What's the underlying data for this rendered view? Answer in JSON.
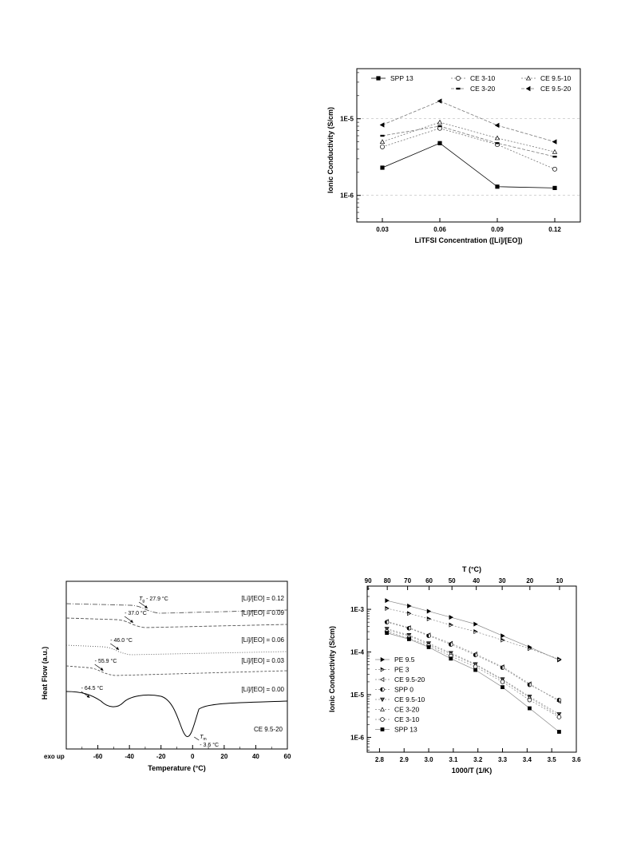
{
  "chart_data": [
    {
      "type": "line",
      "xlabel": "LiTFSI Concentration ([Li]/[EO])",
      "ylabel": "Ionic Conductivity (S/cm)",
      "ylog": true,
      "categories": [
        "0.03",
        "0.06",
        "0.09",
        "0.12"
      ],
      "yticks": [
        {
          "v": 1e-06,
          "label": "1E-6"
        },
        {
          "v": 1e-05,
          "label": "1E-5"
        }
      ],
      "ylim": [
        4.5e-07,
        4.5e-05
      ],
      "legend": "top",
      "series": [
        {
          "name": "SPP 13",
          "marker": "square-filled",
          "dash": "",
          "values": [
            2.3e-06,
            4.8e-06,
            1.3e-06,
            1.25e-06
          ]
        },
        {
          "name": "CE 3-10",
          "marker": "circle-open",
          "dash": "2,2",
          "values": [
            4.3e-06,
            7.5e-06,
            4.6e-06,
            2.2e-06
          ]
        },
        {
          "name": "CE 9.5-10",
          "marker": "triangle-open",
          "dash": "2,2",
          "values": [
            5e-06,
            9e-06,
            5.6e-06,
            3.7e-06
          ]
        },
        {
          "name": "CE 3-20",
          "marker": "bar",
          "dash": "4,2",
          "values": [
            6e-06,
            8e-06,
            4.8e-06,
            3.2e-06
          ]
        },
        {
          "name": "CE 9.5-20",
          "marker": "triangle-left",
          "dash": "4,2",
          "values": [
            8.3e-06,
            1.7e-05,
            8.2e-06,
            5e-06
          ]
        }
      ]
    },
    {
      "type": "line",
      "xlabel": "Temperature (°C)",
      "ylabel": "Heat Flow (a.u.)",
      "xlim": [
        -80,
        60
      ],
      "xticks": [
        -60,
        -40,
        -20,
        0,
        20,
        40,
        60
      ],
      "corner_left": "exo up",
      "sample_label": "CE 9.5-20",
      "curves": [
        {
          "label": "[Li]/[EO] = 0.12",
          "dash": "6,2,1,2",
          "tg": "- 27.9 °C",
          "tg_prefix": "T",
          "tg_sub": "g"
        },
        {
          "label": "[Li]/[EO] = 0.09",
          "dash": "4,2",
          "tg": "- 37.0 °C"
        },
        {
          "label": "[Li]/[EO] = 0.06",
          "dash": "1,2",
          "tg": "- 46.0 °C"
        },
        {
          "label": "[Li]/[EO] = 0.03",
          "dash": "3,2",
          "tg": "- 55.9 °C"
        },
        {
          "label": "[Li]/[EO] = 0.00",
          "dash": "",
          "tg": "- 64.5 °C",
          "tm": "- 3.6 °C",
          "tm_prefix": "T",
          "tm_sub": "m"
        }
      ]
    },
    {
      "type": "scatter",
      "xlabel": "1000/T (1/K)",
      "ylabel": "Ionic Conductivity (S/cm)",
      "top_xlabel": "T (°C)",
      "ylog": true,
      "xlim": [
        2.75,
        3.6
      ],
      "xticks": [
        "2.8",
        "2.9",
        "3.0",
        "3.1",
        "3.2",
        "3.3",
        "3.4",
        "3.5",
        "3.6"
      ],
      "top_ticks": [
        "90",
        "80",
        "70",
        "60",
        "50",
        "40",
        "30",
        "20",
        "10"
      ],
      "ylim": [
        4.5e-07,
        0.0035
      ],
      "yticks": [
        {
          "v": 1e-06,
          "label": "1E-6"
        },
        {
          "v": 1e-05,
          "label": "1E-5"
        },
        {
          "v": 0.0001,
          "label": "1E-4"
        },
        {
          "v": 0.001,
          "label": "1E-3"
        }
      ],
      "legend": "bottom-left",
      "x": [
        2.83,
        2.92,
        3.0,
        3.09,
        3.19,
        3.3,
        3.41,
        3.53
      ],
      "series": [
        {
          "name": "PE 9.5",
          "marker": "triangle-right-filled",
          "dash": "",
          "values": [
            0.0016,
            0.0012,
            0.0009,
            0.00065,
            0.00045,
            0.00024,
            0.00013,
            6.5e-05
          ]
        },
        {
          "name": "PE 3",
          "marker": "triangle-right-half",
          "dash": "2,2",
          "values": [
            0.00105,
            0.0008,
            0.0006,
            0.00043,
            0.0003,
            0.00019,
            0.00012,
            6.8e-05
          ]
        },
        {
          "name": "CE 9.5-20",
          "marker": "triangle-left-open",
          "dash": "2,2",
          "values": [
            0.00052,
            0.00037,
            0.00025,
            0.00016,
            9e-05,
            4.5e-05,
            1.8e-05,
            7e-06
          ]
        },
        {
          "name": "SPP 0",
          "marker": "circle-half",
          "dash": "2,2",
          "values": [
            0.0005,
            0.00036,
            0.00024,
            0.00015,
            8.5e-05,
            4.3e-05,
            1.7e-05,
            7.5e-06
          ]
        },
        {
          "name": "CE 9.5-10",
          "marker": "triangle-down-filled",
          "dash": "2,2",
          "values": [
            0.00035,
            0.00025,
            0.00016,
            9.5e-05,
            5.2e-05,
            2.3e-05,
            9e-06,
            3.5e-06
          ]
        },
        {
          "name": "CE 3-20",
          "marker": "triangle-up-open",
          "dash": "2,2",
          "values": [
            0.00033,
            0.00024,
            0.00015,
            9e-05,
            5e-05,
            2.2e-05,
            8.5e-06,
            3.2e-06
          ]
        },
        {
          "name": "CE 3-10",
          "marker": "circle-open",
          "dash": "2,2",
          "values": [
            0.0003,
            0.00021,
            0.00014,
            8e-05,
            4.5e-05,
            2e-05,
            7.5e-06,
            3e-06
          ]
        },
        {
          "name": "SPP 13",
          "marker": "square-filled",
          "dash": "",
          "values": [
            0.00028,
            0.0002,
            0.00013,
            7e-05,
            3.8e-05,
            1.5e-05,
            4.8e-06,
            1.35e-06
          ]
        }
      ]
    }
  ]
}
